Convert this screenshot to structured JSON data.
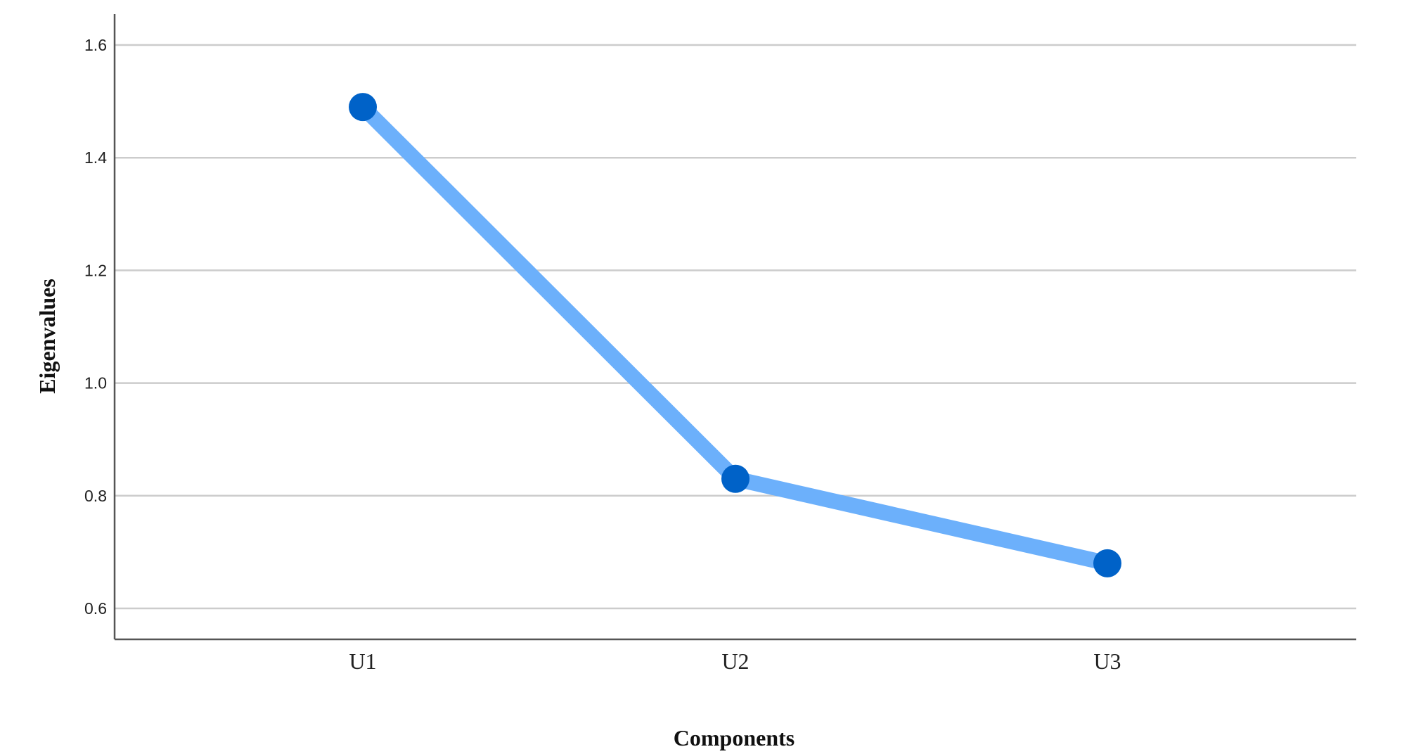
{
  "chart_data": {
    "type": "line",
    "title": "",
    "xlabel": "Components",
    "ylabel": "Eigenvalues",
    "categories": [
      "U1",
      "U2",
      "U3"
    ],
    "series": [
      {
        "name": "Eigenvalues",
        "values": [
          1.49,
          0.83,
          0.68
        ]
      }
    ],
    "ylim": [
      0.545,
      1.655
    ],
    "yticks": [
      0.6,
      0.8,
      1.0,
      1.2,
      1.4,
      1.6
    ],
    "ytick_labels": [
      "0.6",
      "0.8",
      "1.0",
      "1.2",
      "1.4",
      "1.6"
    ],
    "grid": true,
    "line_color": "#6cb0fb",
    "marker_color": "#0062c8",
    "axis_color": "#555555",
    "grid_color": "#cccccc"
  }
}
